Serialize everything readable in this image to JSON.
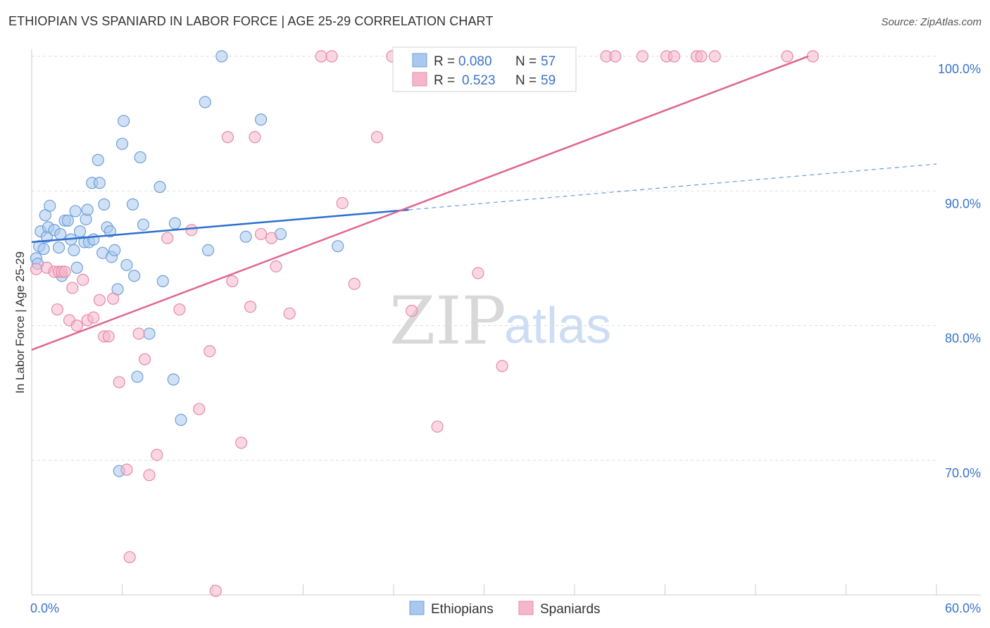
{
  "title": "ETHIOPIAN VS SPANIARD IN LABOR FORCE | AGE 25-29 CORRELATION CHART",
  "source": "Source: ZipAtlas.com",
  "watermark": {
    "zip": "ZIP",
    "atlas": "atlas"
  },
  "colors": {
    "ethiopians_fill": "#a9c8ee",
    "ethiopians_stroke": "#6f9fd8",
    "ethiopians_line": "#2b6fd1",
    "spaniards_fill": "#f6b6ca",
    "spaniards_stroke": "#e68aa8",
    "spaniards_line": "#e0668f",
    "grid": "#dddddd",
    "axis_label": "#3a74c9"
  },
  "legend": {
    "row1": {
      "r_label": "R = ",
      "r_value": "0.080",
      "n_label": "N = ",
      "n_value": "57"
    },
    "row2": {
      "r_label": "R = ",
      "r_value": "0.523",
      "n_label": "N = ",
      "n_value": "59"
    }
  },
  "bottom_legend": {
    "series1": "Ethiopians",
    "series2": "Spaniards"
  },
  "chart_data": {
    "type": "scatter",
    "title": "ETHIOPIAN VS SPANIARD IN LABOR FORCE | AGE 25-29 CORRELATION CHART",
    "xlabel": "",
    "ylabel": "In Labor Force | Age 25-29",
    "xlim": [
      0,
      60
    ],
    "ylim": [
      60,
      100
    ],
    "x_tick_labels": [
      "0.0%",
      "60.0%"
    ],
    "y_tick_labels": [
      "100.0%",
      "90.0%",
      "80.0%",
      "70.0%"
    ],
    "y_ticks": [
      100,
      90,
      80,
      70
    ],
    "grid": true,
    "legend_position": "top-center",
    "series": [
      {
        "name": "Ethiopians",
        "r": 0.08,
        "n": 57,
        "trend": {
          "x0": 0,
          "y0": 86.2,
          "x1": 25,
          "y1": 88.6,
          "dashed_to_x": 60,
          "dashed_to_y": 92.0
        },
        "points": [
          [
            0.3,
            85.0
          ],
          [
            0.4,
            84.6
          ],
          [
            0.5,
            85.9
          ],
          [
            0.6,
            87.0
          ],
          [
            0.8,
            85.7
          ],
          [
            0.9,
            88.2
          ],
          [
            1.0,
            86.6
          ],
          [
            1.1,
            87.3
          ],
          [
            1.2,
            88.9
          ],
          [
            1.5,
            87.1
          ],
          [
            1.8,
            85.8
          ],
          [
            1.9,
            86.8
          ],
          [
            2.0,
            83.7
          ],
          [
            2.2,
            87.8
          ],
          [
            2.4,
            87.8
          ],
          [
            2.6,
            86.4
          ],
          [
            2.8,
            85.6
          ],
          [
            2.9,
            88.5
          ],
          [
            3.0,
            84.3
          ],
          [
            3.2,
            87.0
          ],
          [
            3.5,
            86.2
          ],
          [
            3.6,
            87.9
          ],
          [
            3.7,
            88.6
          ],
          [
            3.8,
            86.2
          ],
          [
            4.0,
            90.6
          ],
          [
            4.1,
            86.4
          ],
          [
            4.4,
            92.3
          ],
          [
            4.5,
            90.6
          ],
          [
            4.7,
            85.4
          ],
          [
            4.8,
            89.0
          ],
          [
            5.0,
            87.3
          ],
          [
            5.2,
            87.0
          ],
          [
            5.3,
            85.1
          ],
          [
            5.5,
            85.6
          ],
          [
            5.7,
            82.7
          ],
          [
            6.0,
            93.5
          ],
          [
            6.1,
            95.2
          ],
          [
            6.3,
            84.5
          ],
          [
            6.7,
            89.0
          ],
          [
            6.8,
            83.7
          ],
          [
            7.0,
            76.2
          ],
          [
            7.2,
            92.5
          ],
          [
            7.4,
            87.5
          ],
          [
            7.8,
            79.4
          ],
          [
            8.5,
            90.3
          ],
          [
            8.7,
            83.3
          ],
          [
            9.4,
            76.0
          ],
          [
            9.5,
            87.6
          ],
          [
            9.9,
            73.0
          ],
          [
            11.5,
            96.6
          ],
          [
            11.7,
            85.6
          ],
          [
            12.6,
            100.0
          ],
          [
            14.2,
            86.6
          ],
          [
            15.2,
            95.3
          ],
          [
            16.5,
            86.8
          ],
          [
            20.3,
            85.9
          ],
          [
            5.8,
            69.2
          ]
        ]
      },
      {
        "name": "Spaniards",
        "r": 0.523,
        "n": 59,
        "trend": {
          "x0": 0,
          "y0": 78.2,
          "x1": 51.5,
          "y1": 100.0
        },
        "points": [
          [
            0.3,
            84.2
          ],
          [
            1.0,
            84.3
          ],
          [
            1.5,
            84.0
          ],
          [
            1.7,
            81.2
          ],
          [
            1.8,
            84.0
          ],
          [
            2.0,
            84.0
          ],
          [
            2.2,
            84.0
          ],
          [
            2.5,
            80.4
          ],
          [
            2.7,
            82.8
          ],
          [
            3.0,
            80.0
          ],
          [
            3.4,
            83.4
          ],
          [
            3.7,
            80.4
          ],
          [
            4.1,
            80.6
          ],
          [
            4.5,
            81.9
          ],
          [
            4.8,
            79.2
          ],
          [
            5.1,
            79.2
          ],
          [
            5.4,
            82.0
          ],
          [
            5.8,
            75.8
          ],
          [
            6.3,
            69.3
          ],
          [
            6.5,
            62.8
          ],
          [
            7.1,
            79.4
          ],
          [
            7.5,
            77.5
          ],
          [
            7.8,
            68.9
          ],
          [
            8.3,
            70.4
          ],
          [
            9.0,
            86.5
          ],
          [
            9.8,
            81.2
          ],
          [
            10.6,
            87.1
          ],
          [
            11.1,
            73.8
          ],
          [
            11.8,
            78.1
          ],
          [
            12.2,
            60.3
          ],
          [
            13.0,
            94.0
          ],
          [
            13.3,
            83.3
          ],
          [
            13.9,
            71.3
          ],
          [
            14.5,
            81.4
          ],
          [
            14.8,
            94.0
          ],
          [
            15.2,
            86.8
          ],
          [
            15.9,
            86.5
          ],
          [
            16.2,
            84.4
          ],
          [
            17.1,
            80.9
          ],
          [
            19.2,
            100.0
          ],
          [
            19.9,
            100.0
          ],
          [
            20.6,
            89.1
          ],
          [
            21.4,
            83.1
          ],
          [
            22.9,
            94.0
          ],
          [
            23.9,
            100.0
          ],
          [
            25.2,
            81.1
          ],
          [
            26.9,
            72.5
          ],
          [
            29.6,
            83.9
          ],
          [
            31.2,
            77.0
          ],
          [
            38.1,
            100.0
          ],
          [
            38.7,
            100.0
          ],
          [
            40.5,
            100.0
          ],
          [
            42.1,
            100.0
          ],
          [
            42.6,
            100.0
          ],
          [
            44.1,
            100.0
          ],
          [
            44.4,
            100.0
          ],
          [
            45.3,
            100.0
          ],
          [
            50.1,
            100.0
          ],
          [
            51.8,
            100.0
          ]
        ]
      }
    ]
  }
}
